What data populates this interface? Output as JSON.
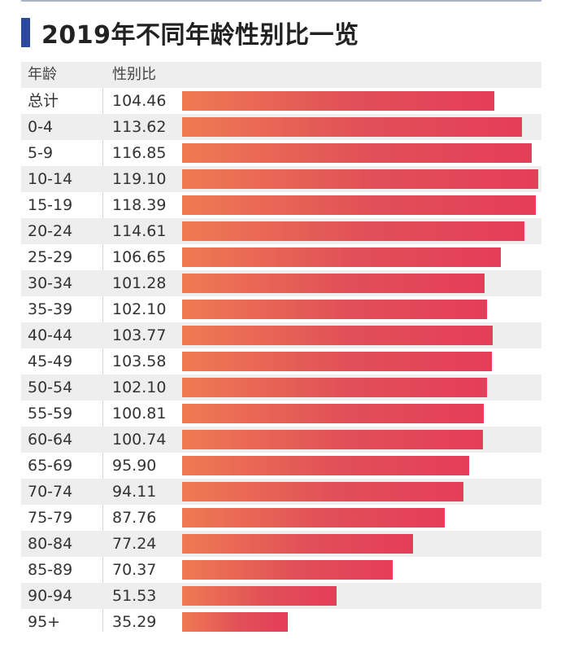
{
  "title": "2019年不同年龄性别比一览",
  "colors": {
    "accent_bar": "#2b4a9e",
    "bar_start": "#f07a52",
    "bar_end": "#e63d59",
    "stripe": "#eeeeee"
  },
  "chart_data": {
    "type": "bar",
    "orientation": "horizontal",
    "title": "2019年不同年龄性别比一览",
    "column_headers": [
      "年龄",
      "性别比"
    ],
    "categories": [
      "总计",
      "0-4",
      "5-9",
      "10-14",
      "15-19",
      "20-24",
      "25-29",
      "30-34",
      "35-39",
      "40-44",
      "45-49",
      "50-54",
      "55-59",
      "60-64",
      "65-69",
      "70-74",
      "75-79",
      "80-84",
      "85-89",
      "90-94",
      "95+"
    ],
    "value_labels": [
      "104.46",
      "113.62",
      "116.85",
      "119.10",
      "118.39",
      "114.61",
      "106.65",
      "101.28",
      "102.10",
      "103.77",
      "103.58",
      "102.10",
      "100.81",
      "100.74",
      "95.90",
      "94.11",
      "87.76",
      "77.24",
      "70.37",
      "51.53",
      "35.29"
    ],
    "values": [
      104.46,
      113.62,
      116.85,
      119.1,
      118.39,
      114.61,
      106.65,
      101.28,
      102.1,
      103.77,
      103.58,
      102.1,
      100.81,
      100.74,
      95.9,
      94.11,
      87.76,
      77.24,
      70.37,
      51.53,
      35.29
    ],
    "xlim": [
      0,
      119.1
    ],
    "xlabel": "",
    "ylabel": ""
  }
}
